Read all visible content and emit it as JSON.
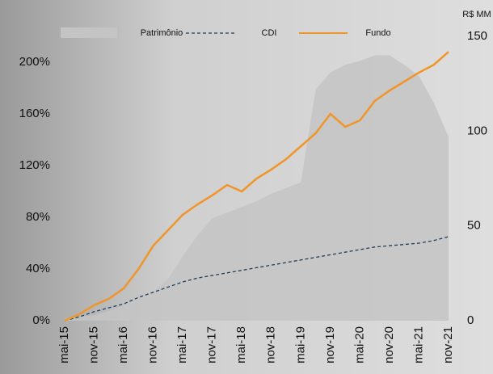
{
  "chart_data": {
    "type": "combo",
    "categories": [
      "mai-15",
      null,
      "nov-15",
      null,
      "mai-16",
      null,
      "nov-16",
      null,
      "mai-17",
      null,
      "nov-17",
      null,
      "mai-18",
      null,
      "nov-18",
      null,
      "mai-19",
      null,
      "nov-19",
      null,
      "mai-20",
      null,
      "nov-20",
      null,
      "mai-21",
      null,
      "nov-21"
    ],
    "y2_label": "R$ MM",
    "ylim": [
      0,
      220
    ],
    "yticks": [
      {
        "value": 0,
        "label": "0%"
      },
      {
        "value": 40,
        "label": "40%"
      },
      {
        "value": 80,
        "label": "80%"
      },
      {
        "value": 120,
        "label": "120%"
      },
      {
        "value": 160,
        "label": "160%"
      },
      {
        "value": 200,
        "label": "200%"
      }
    ],
    "y2lim": [
      0,
      150
    ],
    "y2ticks": [
      0,
      50,
      100,
      150
    ],
    "series": [
      {
        "name": "Patrimônio",
        "type": "area",
        "axis": "y2",
        "color": "#c4c4c4",
        "values": [
          1,
          2,
          3,
          5,
          8,
          11,
          15,
          22,
          34,
          45,
          54,
          57,
          60,
          63,
          67,
          70,
          73,
          122,
          131,
          135,
          137,
          140,
          140,
          135,
          129,
          115,
          97
        ]
      },
      {
        "name": "CDI",
        "type": "line",
        "dashed": true,
        "color": "#1f3e5a",
        "values": [
          0,
          3,
          7,
          10,
          13,
          18,
          22,
          26,
          30,
          33,
          35,
          37,
          39,
          41,
          43,
          45,
          47,
          49,
          51,
          53,
          55,
          57,
          58,
          59,
          60,
          62,
          65
        ]
      },
      {
        "name": "Fundo",
        "type": "line",
        "color": "#f0952a",
        "values": [
          0,
          5,
          12,
          17,
          25,
          40,
          58,
          70,
          82,
          90,
          97,
          105,
          100,
          110,
          117,
          125,
          135,
          145,
          160,
          150,
          155,
          170,
          178,
          185,
          192,
          198,
          208
        ]
      }
    ]
  }
}
